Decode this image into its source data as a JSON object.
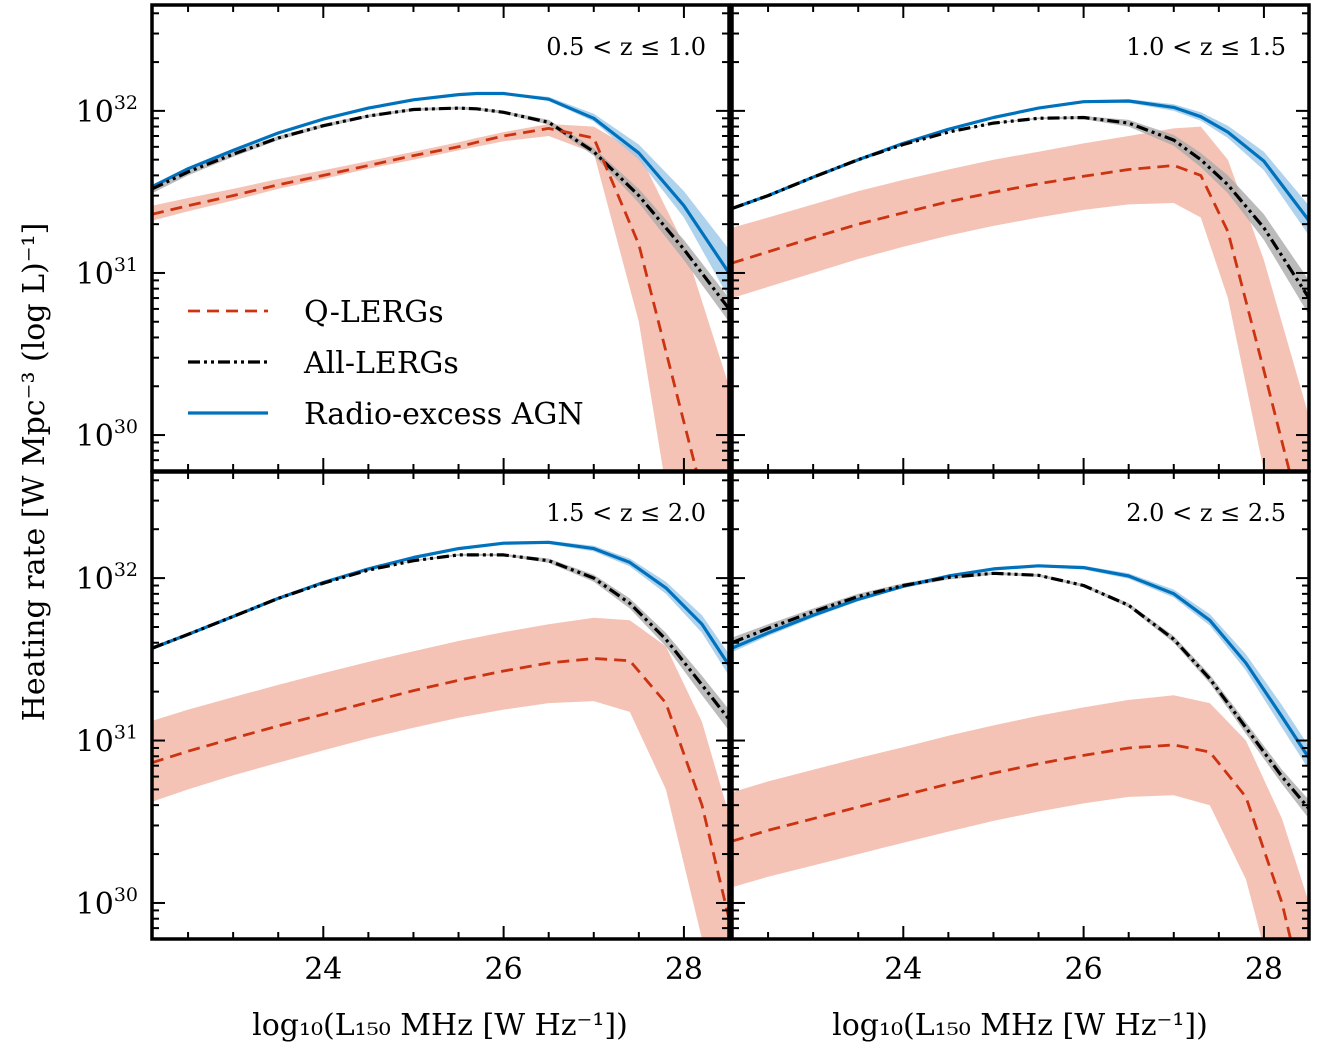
{
  "figure": {
    "ylabel": "Heating rate [W Mpc⁻³ (log L)⁻¹]",
    "xlabel": "log₁₀(L₁₅₀ MHz [W Hz⁻¹])"
  },
  "legend": {
    "placement": "top-left panel, lower-left",
    "items": [
      {
        "key": "q",
        "label": "Q-LERGs"
      },
      {
        "key": "all",
        "label": "All-LERGs"
      },
      {
        "key": "agn",
        "label": "Radio-excess AGN"
      }
    ]
  },
  "colors": {
    "q_line": "#cc3311",
    "q_band": "#f2b8a8",
    "all_line": "#000000",
    "all_band": "#aaaaaa",
    "agn_line": "#0072bd",
    "agn_band": "#9cc8e8"
  },
  "chart_data": [
    {
      "type": "line",
      "panel": "0.5 < z ≤ 1.0",
      "xlim": [
        22.1,
        28.5
      ],
      "ylim": [
        6e+29,
        4.5e+32
      ],
      "yscale": "log",
      "xticks": [
        24,
        26,
        28
      ],
      "yticks": [
        1e+30,
        1e+31,
        1e+32
      ],
      "yticklabels": [
        "10",
        "10",
        "10"
      ],
      "ytickexps": [
        "30",
        "31",
        "32"
      ],
      "x": [
        22.1,
        22.5,
        23.0,
        23.5,
        24.0,
        24.5,
        25.0,
        25.5,
        25.7,
        26.0,
        26.5,
        27.0,
        27.5,
        28.0,
        28.5
      ],
      "series": [
        {
          "key": "q",
          "name": "Q-LERGs",
          "values": [
            2.3e+31,
            2.6e+31,
            3e+31,
            3.5e+31,
            4e+31,
            4.6e+31,
            5.3e+31,
            6e+31,
            6.4e+31,
            7e+31,
            7.8e+31,
            6.8e+31,
            1.5e+31,
            1.2e+30,
            1e+29
          ],
          "lower": [
            2.1e+31,
            2.4e+31,
            2.8e+31,
            3.3e+31,
            3.8e+31,
            4.4e+31,
            5e+31,
            5.7e+31,
            6e+31,
            6.5e+31,
            7e+31,
            5.5e+31,
            5e+30,
            1e+29,
            1e+29
          ],
          "upper": [
            2.6e+31,
            2.9e+31,
            3.3e+31,
            3.8e+31,
            4.3e+31,
            4.9e+31,
            5.6e+31,
            6.4e+31,
            6.8e+31,
            7.4e+31,
            8.3e+31,
            8e+31,
            5.5e+31,
            1.5e+31,
            2e+30
          ]
        },
        {
          "key": "all",
          "name": "All-LERGs",
          "values": [
            3.3e+31,
            4.2e+31,
            5.4e+31,
            6.8e+31,
            8.1e+31,
            9.3e+31,
            1.02e+32,
            1.04e+32,
            1.03e+32,
            9.8e+31,
            8.5e+31,
            5.6e+31,
            3e+31,
            1.4e+31,
            6e+30
          ],
          "lower": [
            3.1e+31,
            4e+31,
            5.2e+31,
            6.6e+31,
            7.9e+31,
            9.1e+31,
            1e+32,
            1.02e+32,
            1.01e+32,
            9.6e+31,
            8.2e+31,
            5.3e+31,
            2.7e+31,
            1.2e+31,
            5e+30
          ],
          "upper": [
            3.5e+31,
            4.4e+31,
            5.6e+31,
            7e+31,
            8.3e+31,
            9.5e+31,
            1.04e+32,
            1.06e+32,
            1.05e+32,
            1e+32,
            8.8e+31,
            5.9e+31,
            3.3e+31,
            1.6e+31,
            7e+30
          ]
        },
        {
          "key": "agn",
          "name": "Radio-excess AGN",
          "values": [
            3.4e+31,
            4.4e+31,
            5.7e+31,
            7.3e+31,
            8.9e+31,
            1.04e+32,
            1.17e+32,
            1.26e+32,
            1.28e+32,
            1.28e+32,
            1.18e+32,
            9e+31,
            5.5e+31,
            2.6e+31,
            1e+31
          ],
          "lower": [
            3.3e+31,
            4.3e+31,
            5.6e+31,
            7.2e+31,
            8.8e+31,
            1.03e+32,
            1.16e+32,
            1.25e+32,
            1.27e+32,
            1.26e+32,
            1.15e+32,
            8.6e+31,
            5e+31,
            2.2e+31,
            7e+30
          ],
          "upper": [
            3.5e+31,
            4.5e+31,
            5.8e+31,
            7.4e+31,
            9e+31,
            1.05e+32,
            1.18e+32,
            1.27e+32,
            1.29e+32,
            1.3e+32,
            1.22e+32,
            9.6e+31,
            6.2e+31,
            3.2e+31,
            1.4e+31
          ]
        }
      ]
    },
    {
      "type": "line",
      "panel": "1.0 < z ≤ 1.5",
      "xlim": [
        22.1,
        28.5
      ],
      "ylim": [
        6e+29,
        4.5e+32
      ],
      "yscale": "log",
      "xticks": [
        24,
        26,
        28
      ],
      "yticks": [
        1e+30,
        1e+31,
        1e+32
      ],
      "x": [
        22.1,
        22.5,
        23.0,
        23.5,
        24.0,
        24.5,
        25.0,
        25.5,
        26.0,
        26.5,
        27.0,
        27.3,
        27.6,
        28.0,
        28.5
      ],
      "series": [
        {
          "key": "q",
          "name": "Q-LERGs",
          "values": [
            1.15e+31,
            1.35e+31,
            1.65e+31,
            2e+31,
            2.35e+31,
            2.75e+31,
            3.15e+31,
            3.55e+31,
            3.95e+31,
            4.35e+31,
            4.6e+31,
            4e+31,
            1.8e+31,
            2.5e+30,
            2e+29
          ],
          "lower": [
            7e+30,
            8.2e+30,
            1e+31,
            1.22e+31,
            1.45e+31,
            1.7e+31,
            1.95e+31,
            2.2e+31,
            2.45e+31,
            2.65e+31,
            2.7e+31,
            2.2e+31,
            7e+30,
            6e+29,
            1e+29
          ],
          "upper": [
            1.9e+31,
            2.2e+31,
            2.65e+31,
            3.2e+31,
            3.75e+31,
            4.35e+31,
            5e+31,
            5.6e+31,
            6.3e+31,
            7e+31,
            7.8e+31,
            8e+31,
            5e+31,
            1.2e+31,
            1.3e+30
          ]
        },
        {
          "key": "all",
          "name": "All-LERGs",
          "values": [
            2.5e+31,
            3e+31,
            3.9e+31,
            5e+31,
            6.2e+31,
            7.4e+31,
            8.4e+31,
            9e+31,
            9.1e+31,
            8.4e+31,
            6.6e+31,
            5e+31,
            3.5e+31,
            1.9e+31,
            7e+30
          ],
          "lower": [
            2.45e+31,
            2.95e+31,
            3.85e+31,
            4.95e+31,
            6.15e+31,
            7.35e+31,
            8.35e+31,
            8.9e+31,
            8.9e+31,
            8e+31,
            6.1e+31,
            4.5e+31,
            3.1e+31,
            1.6e+31,
            5.5e+30
          ],
          "upper": [
            2.55e+31,
            3.05e+31,
            3.95e+31,
            5.05e+31,
            6.25e+31,
            7.45e+31,
            8.45e+31,
            9.1e+31,
            9.3e+31,
            8.8e+31,
            7.1e+31,
            5.5e+31,
            4e+31,
            2.3e+31,
            9e+30
          ]
        },
        {
          "key": "agn",
          "name": "Radio-excess AGN",
          "values": [
            2.5e+31,
            3e+31,
            3.9e+31,
            5e+31,
            6.3e+31,
            7.7e+31,
            9.1e+31,
            1.04e+32,
            1.14e+32,
            1.15e+32,
            1.05e+32,
            9.2e+31,
            7.4e+31,
            4.9e+31,
            2.1e+31
          ],
          "lower": [
            2.45e+31,
            2.95e+31,
            3.85e+31,
            4.95e+31,
            6.25e+31,
            7.65e+31,
            9e+31,
            1.03e+32,
            1.12e+32,
            1.12e+32,
            1e+32,
            8.7e+31,
            6.8e+31,
            4.3e+31,
            1.7e+31
          ],
          "upper": [
            2.55e+31,
            3.05e+31,
            3.95e+31,
            5.05e+31,
            6.35e+31,
            7.75e+31,
            9.2e+31,
            1.05e+32,
            1.16e+32,
            1.18e+32,
            1.1e+32,
            9.8e+31,
            8.1e+31,
            5.6e+31,
            2.6e+31
          ]
        }
      ]
    },
    {
      "type": "line",
      "panel": "1.5 < z ≤ 2.0",
      "xlim": [
        22.1,
        28.5
      ],
      "ylim": [
        6e+29,
        4.5e+32
      ],
      "yscale": "log",
      "xticks": [
        24,
        26,
        28
      ],
      "yticks": [
        1e+30,
        1e+31,
        1e+32
      ],
      "x": [
        22.1,
        22.5,
        23.0,
        23.5,
        24.0,
        24.5,
        25.0,
        25.5,
        26.0,
        26.5,
        27.0,
        27.4,
        27.8,
        28.2,
        28.5
      ],
      "series": [
        {
          "key": "q",
          "name": "Q-LERGs",
          "values": [
            7.3e+30,
            8.6e+30,
            1.03e+31,
            1.23e+31,
            1.45e+31,
            1.72e+31,
            2.03e+31,
            2.35e+31,
            2.68e+31,
            3e+31,
            3.2e+31,
            3.1e+31,
            1.7e+31,
            4e+30,
            8e+29
          ],
          "lower": [
            4.2e+30,
            5e+30,
            6.1e+30,
            7.3e+30,
            8.7e+30,
            1.03e+31,
            1.2e+31,
            1.38e+31,
            1.55e+31,
            1.7e+31,
            1.75e+31,
            1.5e+31,
            5e+30,
            6e+29,
            1e+29
          ],
          "upper": [
            1.32e+31,
            1.55e+31,
            1.85e+31,
            2.2e+31,
            2.6e+31,
            3.05e+31,
            3.55e+31,
            4.1e+31,
            4.65e+31,
            5.2e+31,
            5.7e+31,
            5.5e+31,
            3.8e+31,
            1.3e+31,
            3.5e+30
          ]
        },
        {
          "key": "all",
          "name": "All-LERGs",
          "values": [
            3.7e+31,
            4.5e+31,
            5.8e+31,
            7.5e+31,
            9.3e+31,
            1.12e+32,
            1.28e+32,
            1.39e+32,
            1.39e+32,
            1.28e+32,
            1e+32,
            7e+31,
            4.2e+31,
            2.2e+31,
            1.35e+31
          ],
          "lower": [
            3.6e+31,
            4.4e+31,
            5.7e+31,
            7.4e+31,
            9.2e+31,
            1.11e+32,
            1.27e+32,
            1.37e+32,
            1.37e+32,
            1.24e+32,
            9.5e+31,
            6.5e+31,
            3.8e+31,
            1.9e+31,
            1.15e+31
          ],
          "upper": [
            3.8e+31,
            4.6e+31,
            5.9e+31,
            7.6e+31,
            9.4e+31,
            1.13e+32,
            1.29e+32,
            1.41e+32,
            1.41e+32,
            1.32e+32,
            1.05e+32,
            7.5e+31,
            4.6e+31,
            2.5e+31,
            1.55e+31
          ]
        },
        {
          "key": "agn",
          "name": "Radio-excess AGN",
          "values": [
            3.7e+31,
            4.5e+31,
            5.8e+31,
            7.5e+31,
            9.4e+31,
            1.14e+32,
            1.34e+32,
            1.52e+32,
            1.64e+32,
            1.66e+32,
            1.52e+32,
            1.25e+32,
            8.7e+31,
            5.2e+31,
            2.9e+31
          ],
          "lower": [
            3.6e+31,
            4.4e+31,
            5.7e+31,
            7.4e+31,
            9.3e+31,
            1.13e+32,
            1.33e+32,
            1.5e+32,
            1.62e+32,
            1.62e+32,
            1.46e+32,
            1.18e+32,
            8e+31,
            4.6e+31,
            2.5e+31
          ],
          "upper": [
            3.8e+31,
            4.6e+31,
            5.9e+31,
            7.6e+31,
            9.5e+31,
            1.15e+32,
            1.35e+32,
            1.54e+32,
            1.66e+32,
            1.7e+32,
            1.58e+32,
            1.32e+32,
            9.5e+31,
            5.9e+31,
            3.4e+31
          ]
        }
      ]
    },
    {
      "type": "line",
      "panel": "2.0 < z ≤ 2.5",
      "xlim": [
        22.1,
        28.5
      ],
      "ylim": [
        6e+29,
        4.5e+32
      ],
      "yscale": "log",
      "xticks": [
        24,
        26,
        28
      ],
      "yticks": [
        1e+30,
        1e+31,
        1e+32
      ],
      "x": [
        22.1,
        22.5,
        23.0,
        23.5,
        24.0,
        24.5,
        25.0,
        25.5,
        26.0,
        26.5,
        27.0,
        27.4,
        27.8,
        28.2,
        28.5
      ],
      "series": [
        {
          "key": "q",
          "name": "Q-LERGs",
          "values": [
            2.4e+30,
            2.8e+30,
            3.3e+30,
            3.9e+30,
            4.6e+30,
            5.4e+30,
            6.3e+30,
            7.2e+30,
            8.1e+30,
            9e+30,
            9.4e+30,
            8.5e+30,
            4.5e+30,
            1e+30,
            2e+29
          ],
          "lower": [
            1.25e+30,
            1.45e+30,
            1.7e+30,
            2e+30,
            2.35e+30,
            2.75e+30,
            3.2e+30,
            3.65e+30,
            4.1e+30,
            4.5e+30,
            4.6e+30,
            4e+30,
            1.4e+30,
            2e+29,
            1e+29
          ],
          "upper": [
            4.8e+30,
            5.6e+30,
            6.6e+30,
            7.8e+30,
            9.1e+30,
            1.07e+31,
            1.24e+31,
            1.42e+31,
            1.6e+31,
            1.78e+31,
            1.9e+31,
            1.7e+31,
            1e+31,
            3.3e+30,
            1e+30
          ]
        },
        {
          "key": "all",
          "name": "All-LERGs",
          "values": [
            4e+31,
            4.9e+31,
            6.2e+31,
            7.7e+31,
            9e+31,
            1.01e+32,
            1.07e+32,
            1.04e+32,
            9e+31,
            6.8e+31,
            4.2e+31,
            2.4e+31,
            1.2e+31,
            6e+30,
            3.8e+30
          ],
          "lower": [
            3.7e+31,
            4.6e+31,
            5.9e+31,
            7.4e+31,
            8.7e+31,
            9.8e+31,
            1.05e+32,
            1.02e+32,
            8.8e+31,
            6.6e+31,
            4e+31,
            2.25e+31,
            1.1e+31,
            5.4e+30,
            3.3e+30
          ],
          "upper": [
            4.3e+31,
            5.2e+31,
            6.5e+31,
            8e+31,
            9.3e+31,
            1.04e+32,
            1.09e+32,
            1.06e+32,
            9.2e+31,
            7e+31,
            4.4e+31,
            2.55e+31,
            1.3e+31,
            6.6e+30,
            4.3e+30
          ]
        },
        {
          "key": "agn",
          "name": "Radio-excess AGN",
          "values": [
            3.7e+31,
            4.6e+31,
            5.9e+31,
            7.4e+31,
            8.9e+31,
            1.03e+32,
            1.14e+32,
            1.19e+32,
            1.16e+32,
            1.03e+32,
            8e+31,
            5.5e+31,
            3e+31,
            1.4e+31,
            7.8e+30
          ],
          "lower": [
            3.5e+31,
            4.4e+31,
            5.7e+31,
            7.2e+31,
            8.7e+31,
            1.01e+32,
            1.12e+32,
            1.17e+32,
            1.13e+32,
            9.9e+31,
            7.6e+31,
            5.1e+31,
            2.7e+31,
            1.2e+31,
            6.6e+30
          ],
          "upper": [
            3.9e+31,
            4.8e+31,
            6.1e+31,
            7.6e+31,
            9.1e+31,
            1.05e+32,
            1.16e+32,
            1.21e+32,
            1.19e+32,
            1.07e+32,
            8.5e+31,
            6e+31,
            3.4e+31,
            1.65e+31,
            9.2e+30
          ]
        }
      ]
    }
  ]
}
